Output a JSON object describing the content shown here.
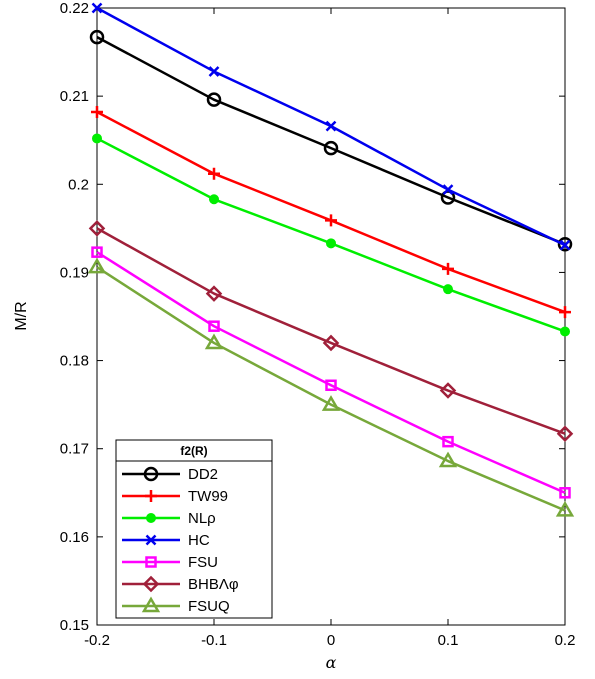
{
  "chart_data": {
    "type": "line",
    "xlabel": "α",
    "ylabel": "M/R",
    "xlim": [
      -0.2,
      0.2
    ],
    "ylim": [
      0.15,
      0.22
    ],
    "xticks": [
      "-0.2",
      "-0.1",
      "0",
      "0.1",
      "0.2"
    ],
    "yticks": [
      "0.15",
      "0.16",
      "0.17",
      "0.18",
      "0.19",
      "0.2",
      "0.21",
      "0.22"
    ],
    "x": [
      -0.2,
      -0.1,
      0,
      0.1,
      0.2
    ],
    "grid": false,
    "legend": {
      "title": "f2(R)",
      "placement": "bottom-left"
    },
    "series": [
      {
        "name": "DD2",
        "color": "#000000",
        "marker": "circle",
        "values": [
          0.2167,
          0.2096,
          0.2041,
          0.1985,
          0.1932
        ]
      },
      {
        "name": "TW99",
        "color": "#ff0000",
        "marker": "plus",
        "values": [
          0.2082,
          0.2012,
          0.1959,
          0.1904,
          0.1855
        ]
      },
      {
        "name": "NLρ",
        "color": "#00ee00",
        "marker": "dot",
        "values": [
          0.2052,
          0.1983,
          0.1933,
          0.1881,
          0.1833
        ]
      },
      {
        "name": "HC",
        "color": "#0000ee",
        "marker": "x",
        "values": [
          0.22,
          0.2128,
          0.2066,
          0.1994,
          0.1931
        ]
      },
      {
        "name": "FSU",
        "color": "#ff00ff",
        "marker": "square",
        "values": [
          0.1923,
          0.1839,
          0.1772,
          0.1708,
          0.165
        ]
      },
      {
        "name": "BHBΛφ",
        "color": "#a0203a",
        "marker": "diamond",
        "values": [
          0.195,
          0.1876,
          0.182,
          0.1766,
          0.1717
        ]
      },
      {
        "name": "FSUQ",
        "color": "#77a83a",
        "marker": "triangle",
        "values": [
          0.1906,
          0.182,
          0.175,
          0.1686,
          0.163
        ]
      }
    ]
  }
}
